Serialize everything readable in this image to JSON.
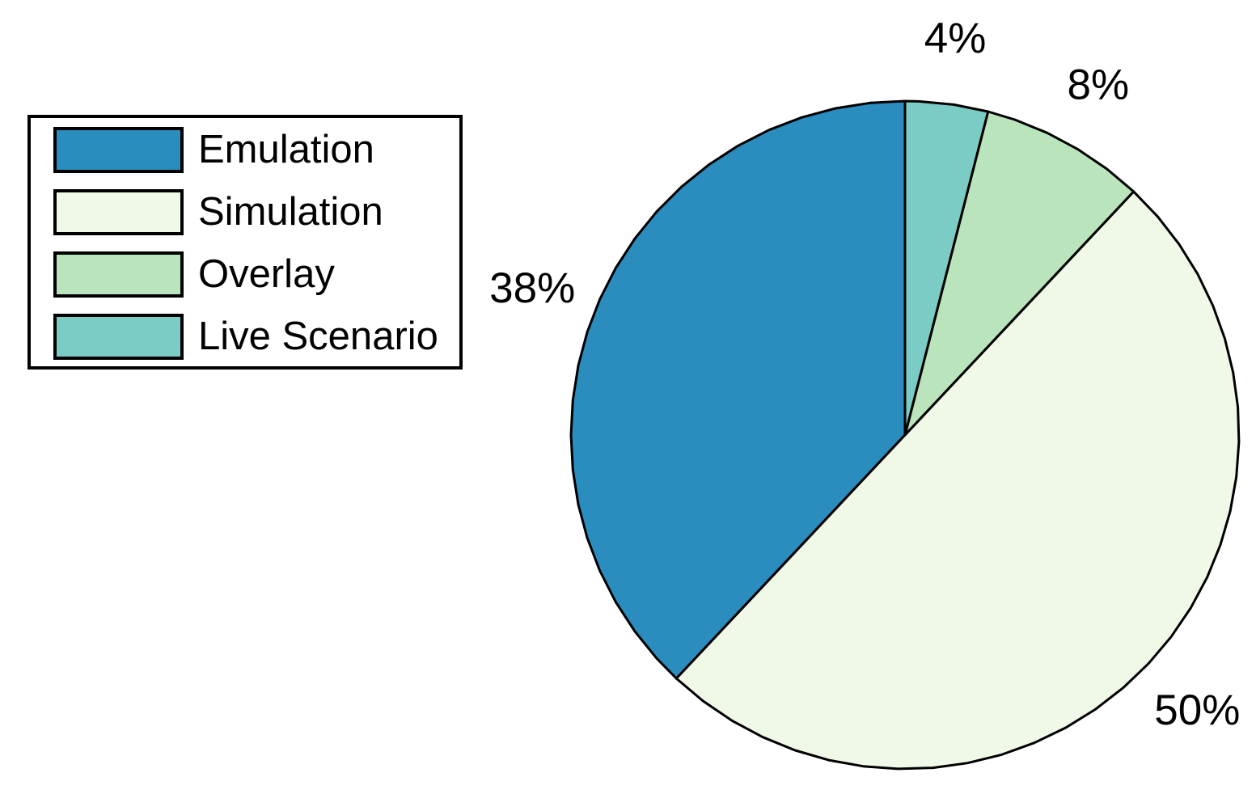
{
  "chart_data": {
    "type": "pie",
    "title": "",
    "background": "#ffffff",
    "edge_color": "#000000",
    "legend_position": "upper-left",
    "start_angle_deg": 90,
    "direction": "counterclockwise",
    "label_radius_factor": 1.2,
    "slices": [
      {
        "label": "Emulation",
        "value": 38,
        "pct_label": "38%",
        "color": "#2b8cbe"
      },
      {
        "label": "Simulation",
        "value": 50,
        "pct_label": "50%",
        "color": "#f0f9e8"
      },
      {
        "label": "Overlay",
        "value": 8,
        "pct_label": "8%",
        "color": "#bae4bc"
      },
      {
        "label": "Live Scenario",
        "value": 4,
        "pct_label": "4%",
        "color": "#7bccc4"
      }
    ]
  }
}
